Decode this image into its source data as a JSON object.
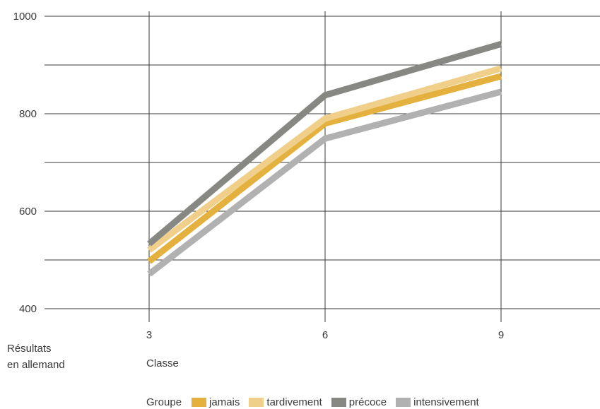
{
  "chart_data": {
    "type": "line",
    "x": [
      3,
      6,
      9
    ],
    "xlabel": "Classe",
    "ylabel_lines": [
      "Résultats",
      "en allemand"
    ],
    "ylim": [
      400,
      1000
    ],
    "yticks": [
      400,
      600,
      800,
      1000
    ],
    "grid": true,
    "legend_title": "Groupe",
    "legend_position": "bottom",
    "series": [
      {
        "name": "jamais",
        "color": "#e4b13f",
        "values": [
          497,
          780,
          877
        ]
      },
      {
        "name": "tardivement",
        "color": "#efcf8a",
        "values": [
          520,
          790,
          893
        ]
      },
      {
        "name": "précoce",
        "color": "#878783",
        "values": [
          533,
          838,
          943
        ]
      },
      {
        "name": "intensivement",
        "color": "#b1b1b1",
        "values": [
          471,
          749,
          845
        ]
      }
    ]
  }
}
